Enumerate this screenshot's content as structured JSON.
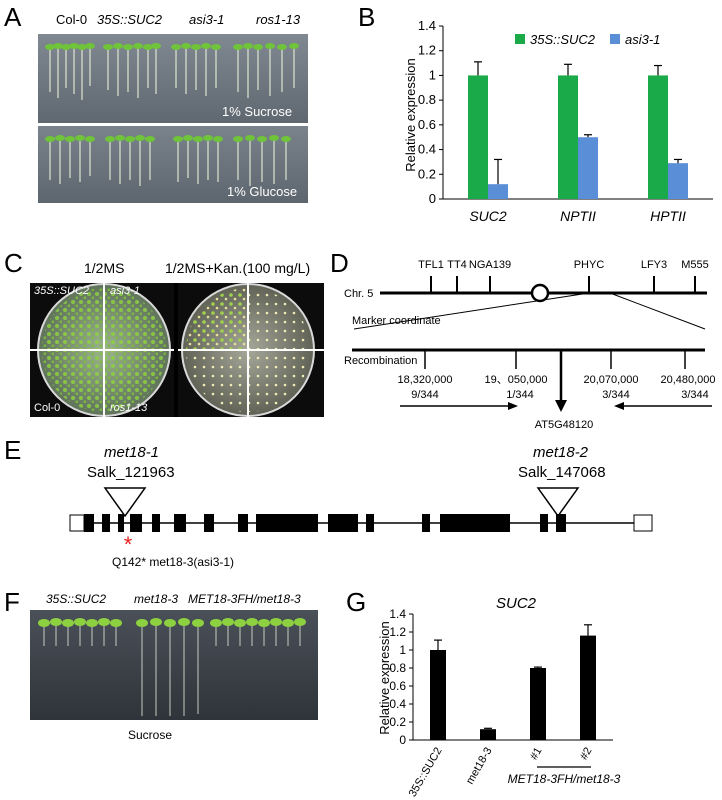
{
  "panel_labels": {
    "a": "A",
    "b": "B",
    "c": "C",
    "d": "D",
    "e": "E",
    "f": "F",
    "g": "G"
  },
  "panel_a": {
    "genotypes": [
      "Col-0",
      "35S::SUC2",
      "asi3-1",
      "ros1-13"
    ],
    "top_condition": "1% Sucrose",
    "bottom_condition": "1% Glucose"
  },
  "panel_c": {
    "left_title": "1/2MS",
    "right_title": "1/2MS+Kan.(100 mg/L)",
    "quadrants": [
      "35S::SUC2",
      "asi3-1",
      "Col-0",
      "ros1-13"
    ]
  },
  "panel_d": {
    "markers": [
      "TFL1",
      "TT4",
      "NGA139",
      "PHYC",
      "LFY3",
      "M555"
    ],
    "chromosome": "Chr. 5",
    "marker_coordinate": "Marker coordinate",
    "recombination": "Recombination",
    "positions": [
      {
        "coord": "18,320,000",
        "rec": "9/344"
      },
      {
        "coord": "19、050,000",
        "rec": "1/344"
      },
      {
        "coord": "20,070,000",
        "rec": "3/344"
      },
      {
        "coord": "20,480,000",
        "rec": "3/344"
      }
    ],
    "gene": "AT5G48120"
  },
  "panel_e": {
    "allele1": "met18-1",
    "line1": "Salk_121963",
    "allele2": "met18-2",
    "line2": "Salk_147068",
    "mutation": "Q142* met18-3(asi3-1)"
  },
  "panel_f": {
    "genotypes": [
      "35S::SUC2",
      "met18-3",
      "MET18-3FH/met18-3"
    ],
    "condition": "Sucrose"
  },
  "chart_data": [
    {
      "type": "bar",
      "title": "",
      "xlabel": "",
      "ylabel": "Relative expression",
      "categories": [
        "SUC2",
        "NPTII",
        "HPTII"
      ],
      "series": [
        {
          "name": "35S::SUC2",
          "color": "#1aaa4a",
          "values": [
            1.0,
            1.0,
            1.0
          ],
          "errors": [
            0.11,
            0.09,
            0.08
          ]
        },
        {
          "name": "asi3-1",
          "color": "#5a8fd8",
          "values": [
            0.12,
            0.5,
            0.29
          ],
          "errors": [
            0.2,
            0.02,
            0.03
          ]
        }
      ],
      "ylim": [
        0,
        1.4
      ],
      "yticks": [
        "0",
        "0.2",
        "0.4",
        "0.6",
        "0.8",
        "1",
        "1.2",
        "1.4"
      ],
      "legend": "top"
    },
    {
      "type": "bar",
      "title": "SUC2",
      "xlabel": "",
      "ylabel": "Relative expression",
      "categories": [
        "35S::SUC2",
        "met18-3",
        "#1",
        "#2"
      ],
      "group_label": "MET18-3FH/met18-3",
      "series": [
        {
          "color": "#000000",
          "values": [
            1.0,
            0.12,
            0.8,
            1.16
          ],
          "errors": [
            0.11,
            0.01,
            0.01,
            0.12
          ]
        }
      ],
      "ylim": [
        0,
        1.4
      ],
      "yticks": [
        "0",
        "0.2",
        "0.4",
        "0.6",
        "0.8",
        "1",
        "1.2",
        "1.4"
      ]
    }
  ]
}
